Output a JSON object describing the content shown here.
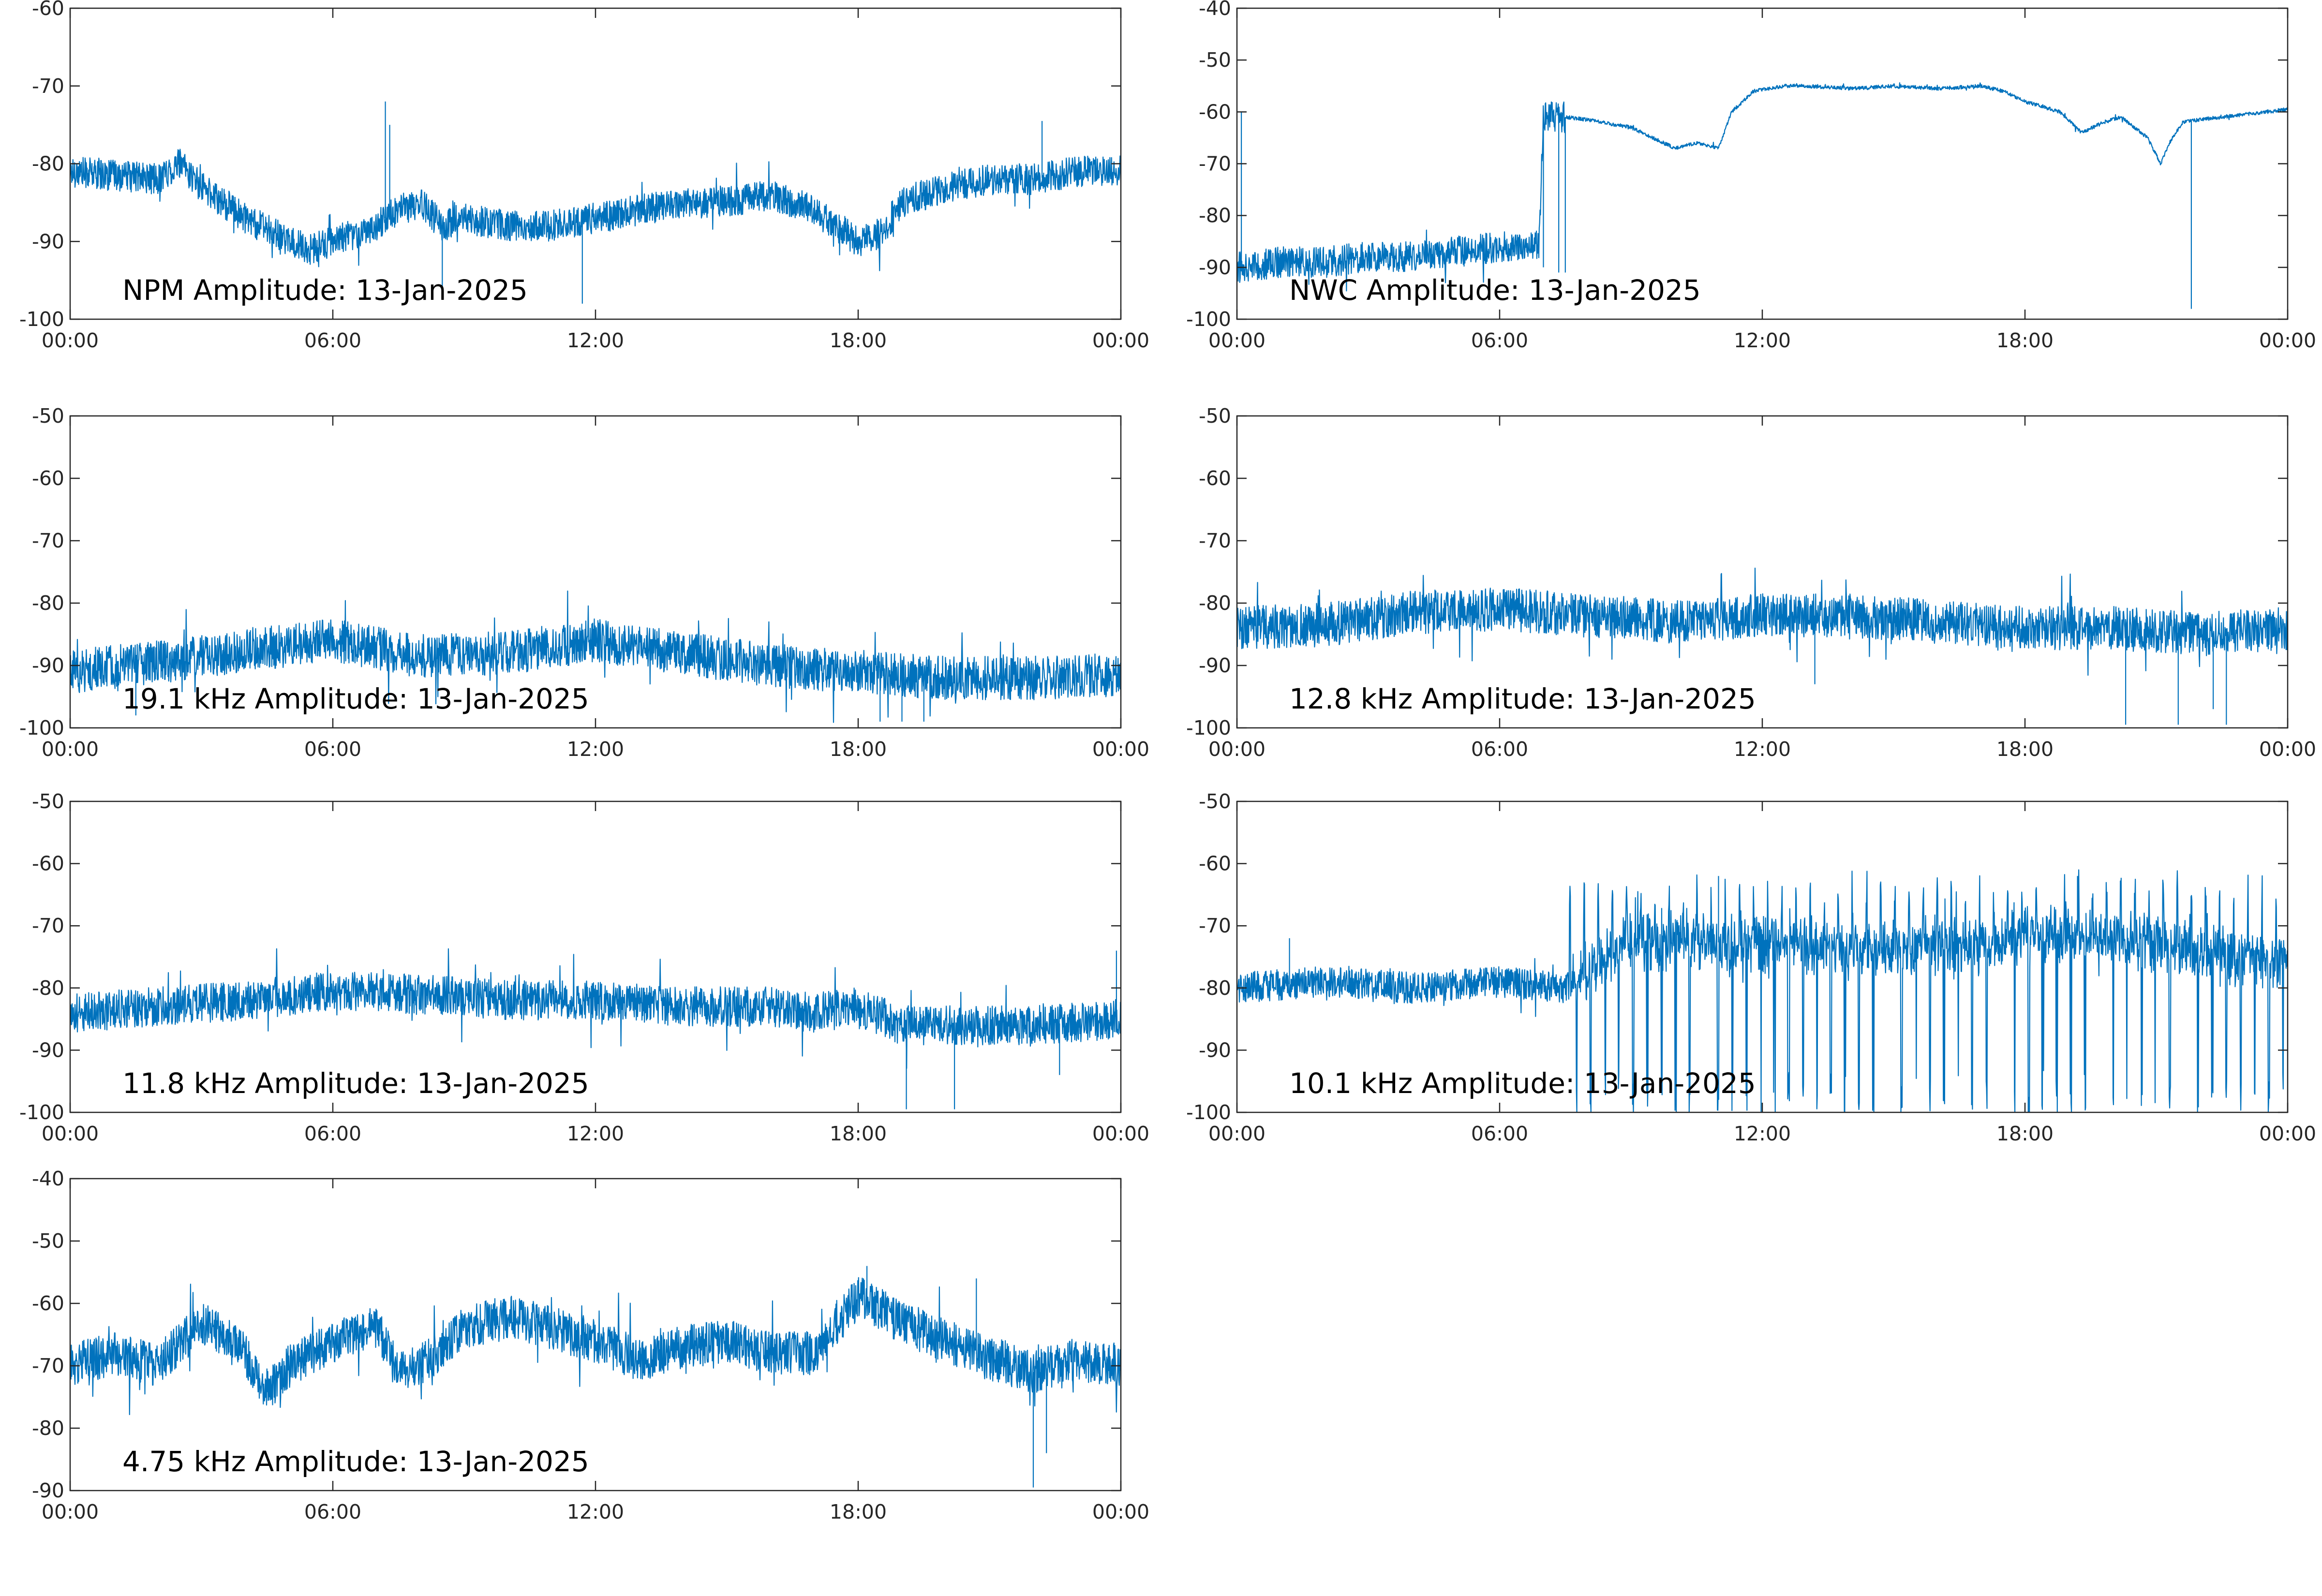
{
  "figure": {
    "line_color": "#0072BD",
    "axis_color": "#262626",
    "background": "#ffffff"
  },
  "chart_data": [
    {
      "type": "line",
      "title": "NPM Amplitude: 13-Jan-2025",
      "x_ticks": [
        "00:00",
        "06:00",
        "12:00",
        "18:00",
        "00:00"
      ],
      "xlim_hours": [
        0,
        24
      ],
      "ylim": [
        -100,
        -60
      ],
      "y_ticks": [
        -60,
        -70,
        -80,
        -90,
        -100
      ],
      "grid": false,
      "series": [
        {
          "noise": 2.0,
          "x": [
            0,
            1,
            2,
            2.5,
            3,
            4,
            5,
            5.5,
            6,
            6.5,
            7,
            7.2,
            7.5,
            8,
            8.5,
            9,
            10,
            11,
            12,
            13,
            14,
            15,
            16,
            17,
            18,
            18.5,
            19,
            20,
            21,
            22,
            23,
            24
          ],
          "y": [
            -81,
            -81.5,
            -82,
            -80,
            -83,
            -87,
            -90,
            -91,
            -90,
            -89,
            -88,
            -87,
            -86,
            -85,
            -88,
            -87,
            -88,
            -88,
            -87,
            -86,
            -85,
            -85,
            -84,
            -86,
            -90,
            -89,
            -85,
            -83,
            -82,
            -82,
            -81,
            -81
          ],
          "spikes": [
            [
              7.2,
              -72
            ],
            [
              7.3,
              -75
            ],
            [
              22.2,
              -74.5
            ],
            [
              8.5,
              -97
            ],
            [
              11.7,
              -98
            ]
          ]
        }
      ]
    },
    {
      "type": "line",
      "title": "NWC Amplitude: 13-Jan-2025",
      "x_ticks": [
        "00:00",
        "06:00",
        "12:00",
        "18:00",
        "00:00"
      ],
      "xlim_hours": [
        0,
        24
      ],
      "ylim": [
        -100,
        -40
      ],
      "y_ticks": [
        -40,
        -50,
        -60,
        -70,
        -80,
        -90,
        -100
      ],
      "grid": false,
      "series": [
        {
          "noise": 3.0,
          "noise_until": 7.5,
          "x": [
            0,
            1,
            2,
            3,
            4,
            5,
            6,
            6.9,
            7.0,
            7.2,
            7.5,
            8,
            9,
            9.5,
            10,
            10.5,
            11,
            11.3,
            11.8,
            12.5,
            13,
            14,
            15,
            16,
            17,
            17.5,
            18,
            18.8,
            19.3,
            19.8,
            20.2,
            20.8,
            21.1,
            21.3,
            21.6,
            22,
            23,
            24
          ],
          "y": [
            -90,
            -89,
            -89,
            -88,
            -88,
            -87,
            -86,
            -86,
            -61,
            -61,
            -61,
            -61.5,
            -63,
            -65,
            -67,
            -66,
            -67,
            -60,
            -56,
            -55,
            -55,
            -55.5,
            -55,
            -55.5,
            -55,
            -56,
            -58,
            -60,
            -64,
            -62,
            -61,
            -65,
            -70,
            -66,
            -62,
            -61.5,
            -60.5,
            -59.5
          ],
          "spikes": [
            [
              21.8,
              -98
            ],
            [
              7.0,
              -90
            ],
            [
              7.35,
              -91
            ],
            [
              7.5,
              -91
            ],
            [
              0.1,
              -60
            ]
          ]
        }
      ]
    },
    {
      "type": "line",
      "title": "19.1 kHz Amplitude: 13-Jan-2025",
      "x_ticks": [
        "00:00",
        "06:00",
        "12:00",
        "18:00",
        "00:00"
      ],
      "xlim_hours": [
        0,
        24
      ],
      "ylim": [
        -100,
        -50
      ],
      "y_ticks": [
        -50,
        -60,
        -70,
        -80,
        -90,
        -100
      ],
      "grid": false,
      "series": [
        {
          "noise": 3.5,
          "x": [
            0,
            2,
            4,
            6,
            8,
            10,
            12,
            14,
            16,
            18,
            20,
            22,
            24
          ],
          "y": [
            -91,
            -89.5,
            -87.5,
            -86,
            -88.5,
            -88,
            -86,
            -88,
            -90,
            -91,
            -92,
            -92,
            -91.5
          ],
          "spikes": [
            [
              18.5,
              -99
            ],
            [
              19.0,
              -99
            ],
            [
              19.5,
              -99
            ],
            [
              1.5,
              -98
            ]
          ]
        }
      ]
    },
    {
      "type": "line",
      "title": "12.8 kHz Amplitude: 13-Jan-2025",
      "x_ticks": [
        "00:00",
        "06:00",
        "12:00",
        "18:00",
        "00:00"
      ],
      "xlim_hours": [
        0,
        24
      ],
      "ylim": [
        -100,
        -50
      ],
      "y_ticks": [
        -50,
        -60,
        -70,
        -80,
        -90,
        -100
      ],
      "grid": false,
      "series": [
        {
          "noise": 3.5,
          "x": [
            0,
            2,
            4,
            6,
            8,
            10,
            12,
            14,
            16,
            18,
            20,
            22,
            24
          ],
          "y": [
            -84,
            -83.5,
            -81.5,
            -81,
            -82,
            -83,
            -82,
            -82,
            -83,
            -84,
            -84,
            -85,
            -84
          ],
          "spikes": [
            [
              20.3,
              -99.5
            ],
            [
              21.5,
              -99.5
            ],
            [
              22.6,
              -99.5
            ],
            [
              22.3,
              -97
            ],
            [
              13.2,
              -93
            ]
          ]
        }
      ]
    },
    {
      "type": "line",
      "title": "11.8 kHz Amplitude: 13-Jan-2025",
      "x_ticks": [
        "00:00",
        "06:00",
        "12:00",
        "18:00",
        "00:00"
      ],
      "xlim_hours": [
        0,
        24
      ],
      "ylim": [
        -100,
        -50
      ],
      "y_ticks": [
        -50,
        -60,
        -70,
        -80,
        -90,
        -100
      ],
      "grid": false,
      "series": [
        {
          "noise": 3.2,
          "x": [
            0,
            2,
            4,
            6,
            8,
            10,
            12,
            14,
            16,
            17,
            18,
            19,
            20,
            22,
            24
          ],
          "y": [
            -84,
            -83,
            -82,
            -80.5,
            -81,
            -82,
            -82,
            -83,
            -83,
            -84,
            -83,
            -86,
            -86,
            -86,
            -85
          ],
          "spikes": [
            [
              19.1,
              -99.5
            ],
            [
              20.2,
              -99.5
            ],
            [
              22.6,
              -94
            ],
            [
              23.9,
              -74
            ]
          ]
        }
      ]
    },
    {
      "type": "line",
      "title": "10.1 kHz Amplitude: 13-Jan-2025",
      "x_ticks": [
        "00:00",
        "06:00",
        "12:00",
        "18:00",
        "00:00"
      ],
      "xlim_hours": [
        0,
        24
      ],
      "ylim": [
        -100,
        -50
      ],
      "y_ticks": [
        -50,
        -60,
        -70,
        -80,
        -90,
        -100
      ],
      "grid": false,
      "series": [
        {
          "noise": 2.5,
          "bursty_after": 7.5,
          "x": [
            0,
            2,
            4,
            6,
            7.5,
            9,
            12,
            15,
            17,
            18,
            20,
            22,
            24
          ],
          "y": [
            -80,
            -79,
            -80,
            -79,
            -80,
            -72,
            -73,
            -74,
            -73,
            -71,
            -72,
            -74,
            -76
          ],
          "spikes": [
            [
              1.2,
              -72
            ],
            [
              11.0,
              -62
            ],
            [
              19.2,
              -62
            ]
          ]
        }
      ]
    },
    {
      "type": "line",
      "title": "4.75 kHz Amplitude: 13-Jan-2025",
      "x_ticks": [
        "00:00",
        "06:00",
        "12:00",
        "18:00",
        "00:00"
      ],
      "xlim_hours": [
        0,
        24
      ],
      "ylim": [
        -90,
        -40
      ],
      "y_ticks": [
        -40,
        -50,
        -60,
        -70,
        -80,
        -90
      ],
      "grid": false,
      "series": [
        {
          "noise": 3.5,
          "x": [
            0,
            1,
            2,
            3,
            4,
            4.5,
            5,
            6,
            7,
            7.5,
            8,
            9,
            10,
            11,
            12,
            13,
            14,
            15,
            16,
            17,
            18,
            19,
            20,
            21,
            22,
            23,
            24
          ],
          "y": [
            -70,
            -68,
            -70,
            -63,
            -68,
            -74,
            -70,
            -66,
            -64,
            -71,
            -70,
            -64,
            -62,
            -64,
            -66,
            -69,
            -67,
            -66,
            -68,
            -68,
            -59,
            -63,
            -66,
            -69,
            -71,
            -69,
            -70
          ],
          "spikes": [
            [
              22.0,
              -89.5
            ],
            [
              22.3,
              -84
            ],
            [
              18.2,
              -54
            ],
            [
              20.7,
              -56
            ]
          ]
        }
      ]
    }
  ]
}
